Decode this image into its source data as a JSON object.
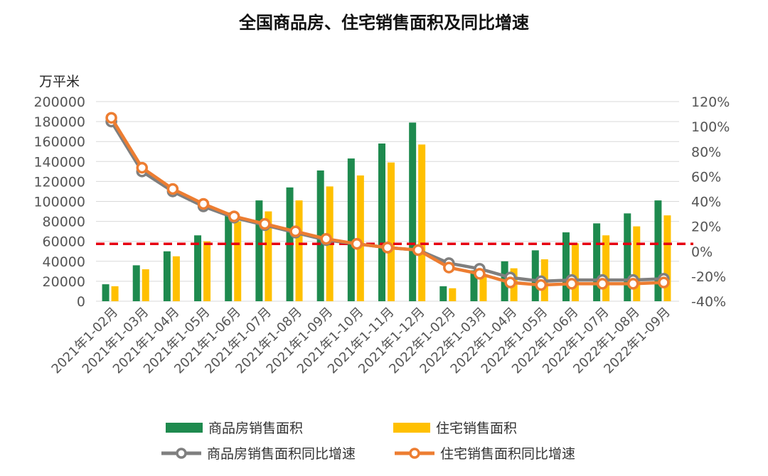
{
  "title": "全国商品房、住宅销售面积及同比增速",
  "unit_label": "万平米",
  "colors": {
    "commercial_bar": "#1e8a4e",
    "residential_bar": "#ffc000",
    "commercial_line": "#7f7f7f",
    "residential_line": "#ed7d31",
    "reference_line": "#e60012"
  },
  "legend": [
    {
      "label": "商品房销售面积",
      "kind": "bar",
      "color": "#1e8a4e"
    },
    {
      "label": "住宅销售面积",
      "kind": "bar",
      "color": "#ffc000"
    },
    {
      "label": "商品房销售面积同比增速",
      "kind": "line",
      "color": "#7f7f7f"
    },
    {
      "label": "住宅销售面积同比增速",
      "kind": "line",
      "color": "#ed7d31"
    }
  ],
  "chart_data": {
    "type": "bar",
    "title": "全国商品房、住宅销售面积及同比增速",
    "ylabel": "万平米",
    "ylim": [
      0,
      200000
    ],
    "y_ticks": [
      "0",
      "20000",
      "40000",
      "60000",
      "80000",
      "100000",
      "120000",
      "140000",
      "160000",
      "180000",
      "200000"
    ],
    "y2lim": [
      -40,
      120
    ],
    "y2_ticks": [
      "-40%",
      "-20%",
      "0%",
      "20%",
      "40%",
      "60%",
      "80%",
      "100%",
      "120%"
    ],
    "categories": [
      "2021年1-02月",
      "2021年1-03月",
      "2021年1-04月",
      "2021年1-05月",
      "2021年1-06月",
      "2021年1-07月",
      "2021年1-08月",
      "2021年1-09月",
      "2021年1-10月",
      "2021年1-11月",
      "2021年1-12月",
      "2022年1-02月",
      "2022年1-03月",
      "2022年1-04月",
      "2022年1-05月",
      "2022年1-06月",
      "2022年1-07月",
      "2022年1-08月",
      "2022年1-09月"
    ],
    "series": [
      {
        "name": "商品房销售面积",
        "kind": "bar",
        "axis": "left",
        "values": [
          17000,
          36000,
          50000,
          66000,
          89000,
          101000,
          114000,
          131000,
          143000,
          158000,
          179000,
          15000,
          31000,
          40000,
          51000,
          69000,
          78000,
          88000,
          101000
        ]
      },
      {
        "name": "住宅销售面积",
        "kind": "bar",
        "axis": "left",
        "values": [
          15000,
          32000,
          45000,
          60000,
          80000,
          90000,
          101000,
          115000,
          126000,
          139000,
          157000,
          13000,
          26000,
          33000,
          42000,
          58000,
          66000,
          75000,
          86000
        ]
      },
      {
        "name": "商品房销售面积同比增速",
        "kind": "line",
        "axis": "right",
        "values": [
          104,
          64,
          48,
          36,
          27,
          21,
          15,
          9,
          6,
          3,
          1,
          -9.5,
          -14,
          -21,
          -24,
          -23,
          -23,
          -23,
          -22
        ]
      },
      {
        "name": "住宅销售面积同比增速",
        "kind": "line",
        "axis": "right",
        "values": [
          107,
          67,
          50,
          38,
          28,
          22,
          16,
          10,
          6,
          3,
          1,
          -13,
          -18,
          -25,
          -27,
          -26,
          -26,
          -26,
          -25
        ]
      }
    ],
    "reference_line": {
      "axis": "right",
      "value": 6,
      "style": "dashed"
    },
    "grid": true,
    "legend_position": "bottom"
  }
}
